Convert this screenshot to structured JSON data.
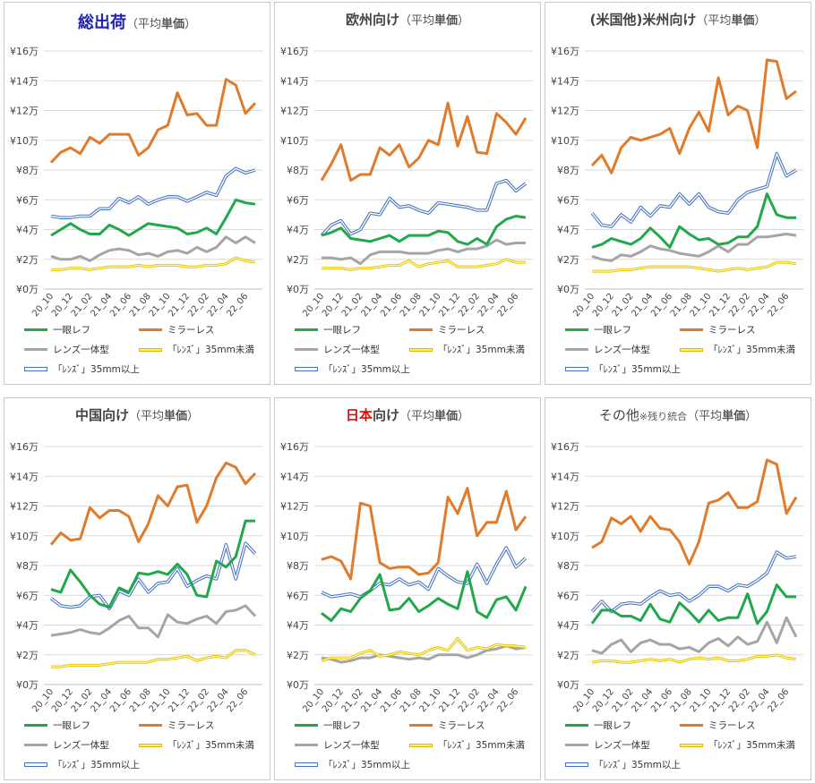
{
  "legend": {
    "slr": "一眼レフ",
    "mirrorless": "ミラーレス",
    "compact": "レンズ一体型",
    "lens_small": "「ﾚﾝｽﾞ」35mm未満",
    "lens_large": "「ﾚﾝｽﾞ」35mm以上"
  },
  "colors": {
    "slr": "#21a84a",
    "mirrorless": "#e07b2c",
    "compact": "#a5a5a5",
    "lens_small": "#ffd700",
    "lens_large": "#4472c4",
    "grid": "#d9d9d9"
  },
  "panels": [
    {
      "title_main": "総出荷",
      "title_main_color": "#1f1fb0",
      "title_pre": "",
      "title_note": "",
      "title_paren_pre": "（平均",
      "title_paren_bold": "単価",
      "title_paren_post": "）"
    },
    {
      "title_main": "",
      "title_main_color": "#333333",
      "title_pre": "欧州向け",
      "title_note": "",
      "title_paren_pre": "（平均",
      "title_paren_bold": "単価",
      "title_paren_post": "）"
    },
    {
      "title_main": "",
      "title_main_color": "#333333",
      "title_pre": "(米国他)米州向け",
      "title_note": "",
      "title_paren_pre": "（平均",
      "title_paren_bold": "単価",
      "title_paren_post": "）"
    },
    {
      "title_main": "",
      "title_main_color": "#333333",
      "title_pre": "中国向け",
      "title_note": "",
      "title_paren_pre": "（平均",
      "title_paren_bold": "単価",
      "title_paren_post": "）"
    },
    {
      "title_main": "日本",
      "title_main_color": "#d01010",
      "title_pre": "向け",
      "title_note": "",
      "title_paren_pre": "（平均",
      "title_paren_bold": "単価",
      "title_paren_post": "）"
    },
    {
      "title_main": "",
      "title_main_color": "#333333",
      "title_pre": "その他",
      "title_note": "※残り統合",
      "title_paren_pre": "（平均",
      "title_paren_bold": "単価",
      "title_paren_post": "）"
    }
  ],
  "chart_data": {
    "type": "line",
    "x": [
      "20_10",
      "20_11",
      "20_12",
      "21_01",
      "21_02",
      "21_03",
      "21_04",
      "21_05",
      "21_06",
      "21_07",
      "21_08",
      "21_09",
      "21_10",
      "21_11",
      "21_12",
      "22_01",
      "22_02",
      "22_03",
      "22_04",
      "22_05",
      "22_06",
      "22_07"
    ],
    "x_tick_labels": [
      "20_10",
      "20_12",
      "21_02",
      "21_04",
      "21_06",
      "21_08",
      "21_10",
      "21_12",
      "22_02",
      "22_04",
      "22_06"
    ],
    "y_tick_labels": [
      "¥0万",
      "¥2万",
      "¥4万",
      "¥6万",
      "¥8万",
      "¥10万",
      "¥12万",
      "¥14万",
      "¥16万"
    ],
    "ylim": [
      0,
      16
    ],
    "yunit": "万円",
    "charts": [
      {
        "title": "総出荷（平均単価）",
        "series": [
          {
            "key": "slr",
            "values": [
              3.6,
              4.0,
              4.4,
              4.0,
              3.7,
              3.7,
              4.3,
              4.0,
              3.6,
              4.0,
              4.4,
              4.3,
              4.2,
              4.1,
              3.7,
              3.8,
              4.1,
              3.7,
              4.8,
              6.0,
              5.8,
              5.7
            ]
          },
          {
            "key": "mirrorless",
            "values": [
              8.5,
              9.2,
              9.5,
              9.1,
              10.2,
              9.8,
              10.4,
              10.4,
              10.4,
              9.0,
              9.5,
              10.7,
              11.0,
              13.2,
              11.7,
              11.8,
              11.0,
              11.0,
              14.1,
              13.7,
              11.8,
              12.5
            ]
          },
          {
            "key": "compact",
            "values": [
              2.2,
              2.0,
              2.0,
              2.2,
              1.9,
              2.3,
              2.6,
              2.7,
              2.6,
              2.3,
              2.4,
              2.2,
              2.5,
              2.6,
              2.4,
              2.8,
              2.5,
              2.8,
              3.5,
              3.1,
              3.5,
              3.1
            ]
          },
          {
            "key": "lens_small",
            "values": [
              1.3,
              1.3,
              1.4,
              1.4,
              1.3,
              1.4,
              1.5,
              1.5,
              1.5,
              1.6,
              1.5,
              1.6,
              1.6,
              1.6,
              1.5,
              1.5,
              1.6,
              1.6,
              1.7,
              2.1,
              1.9,
              1.8
            ]
          },
          {
            "key": "lens_large",
            "values": [
              4.9,
              4.8,
              4.8,
              4.9,
              4.9,
              5.4,
              5.4,
              6.1,
              5.8,
              6.2,
              5.7,
              6.0,
              6.2,
              6.2,
              5.9,
              6.2,
              6.5,
              6.3,
              7.6,
              8.1,
              7.8,
              8.0
            ]
          }
        ]
      },
      {
        "title": "欧州向け（平均単価）",
        "series": [
          {
            "key": "slr",
            "values": [
              3.6,
              3.8,
              4.1,
              3.4,
              3.3,
              3.2,
              3.4,
              3.6,
              3.2,
              3.6,
              3.6,
              3.6,
              3.9,
              3.8,
              3.2,
              3.0,
              3.4,
              3.0,
              4.2,
              4.7,
              4.9,
              4.8
            ]
          },
          {
            "key": "mirrorless",
            "values": [
              7.3,
              8.4,
              9.7,
              7.3,
              7.7,
              7.7,
              9.5,
              9.0,
              9.7,
              8.2,
              8.8,
              10.0,
              9.7,
              12.5,
              9.6,
              11.6,
              9.2,
              9.1,
              11.8,
              11.2,
              10.4,
              11.5
            ]
          },
          {
            "key": "compact",
            "values": [
              2.1,
              2.1,
              2.0,
              2.1,
              1.7,
              2.3,
              2.5,
              2.5,
              2.5,
              2.4,
              2.4,
              2.4,
              2.6,
              2.7,
              2.5,
              2.7,
              2.7,
              2.9,
              3.3,
              3.0,
              3.1,
              3.1
            ]
          },
          {
            "key": "lens_small",
            "values": [
              1.4,
              1.4,
              1.4,
              1.3,
              1.4,
              1.4,
              1.5,
              1.6,
              1.6,
              1.9,
              1.5,
              1.7,
              1.8,
              1.9,
              1.5,
              1.5,
              1.5,
              1.6,
              1.7,
              2.0,
              1.8,
              1.8
            ]
          },
          {
            "key": "lens_large",
            "values": [
              3.6,
              4.3,
              4.6,
              3.7,
              4.0,
              5.1,
              5.0,
              6.1,
              5.5,
              5.6,
              5.3,
              5.1,
              5.8,
              5.7,
              5.6,
              5.5,
              5.3,
              5.3,
              7.1,
              7.3,
              6.6,
              7.1
            ]
          }
        ]
      },
      {
        "title": "(米国他)米州向け（平均単価）",
        "series": [
          {
            "key": "slr",
            "values": [
              2.8,
              3.0,
              3.4,
              3.2,
              3.0,
              3.4,
              4.1,
              3.5,
              2.8,
              4.2,
              3.7,
              3.3,
              3.4,
              3.0,
              3.1,
              3.5,
              3.5,
              4.2,
              6.4,
              5.0,
              4.8,
              4.8
            ]
          },
          {
            "key": "mirrorless",
            "values": [
              8.3,
              9.0,
              7.8,
              9.5,
              10.2,
              10.0,
              10.2,
              10.4,
              10.8,
              9.1,
              10.8,
              11.9,
              10.6,
              14.2,
              11.7,
              12.3,
              12.0,
              9.5,
              15.4,
              15.3,
              12.8,
              13.3
            ]
          },
          {
            "key": "compact",
            "values": [
              2.2,
              2.0,
              1.9,
              2.3,
              2.2,
              2.5,
              2.9,
              2.7,
              2.6,
              2.4,
              2.3,
              2.2,
              2.5,
              2.9,
              2.5,
              3.0,
              3.0,
              3.5,
              3.5,
              3.6,
              3.7,
              3.6
            ]
          },
          {
            "key": "lens_small",
            "values": [
              1.2,
              1.2,
              1.2,
              1.3,
              1.3,
              1.4,
              1.5,
              1.5,
              1.5,
              1.5,
              1.5,
              1.4,
              1.3,
              1.2,
              1.3,
              1.4,
              1.3,
              1.4,
              1.5,
              1.8,
              1.8,
              1.7
            ]
          },
          {
            "key": "lens_large",
            "values": [
              5.1,
              4.3,
              4.2,
              5.0,
              4.5,
              5.5,
              4.9,
              5.6,
              5.5,
              6.4,
              5.7,
              6.4,
              5.5,
              5.2,
              5.1,
              6.0,
              6.5,
              6.7,
              6.9,
              9.1,
              7.6,
              8.0
            ]
          }
        ]
      },
      {
        "title": "中国向け（平均単価）",
        "series": [
          {
            "key": "slr",
            "values": [
              6.4,
              6.2,
              7.7,
              6.9,
              6.0,
              5.4,
              5.2,
              6.5,
              6.2,
              7.5,
              7.4,
              7.6,
              7.4,
              8.1,
              7.4,
              6.0,
              5.9,
              8.3,
              7.9,
              8.6,
              11.0,
              11.0
            ]
          },
          {
            "key": "mirrorless",
            "values": [
              9.4,
              10.2,
              9.7,
              9.8,
              11.9,
              11.2,
              11.7,
              11.7,
              11.3,
              9.6,
              10.8,
              12.7,
              12.0,
              13.3,
              13.4,
              10.9,
              12.0,
              13.9,
              14.9,
              14.6,
              13.5,
              14.2
            ]
          },
          {
            "key": "compact",
            "values": [
              3.3,
              3.4,
              3.5,
              3.7,
              3.5,
              3.4,
              3.8,
              4.3,
              4.6,
              3.8,
              3.8,
              3.2,
              4.7,
              4.2,
              4.1,
              4.4,
              4.6,
              4.1,
              4.9,
              5.0,
              5.3,
              4.6
            ]
          },
          {
            "key": "lens_small",
            "values": [
              1.2,
              1.2,
              1.3,
              1.3,
              1.3,
              1.3,
              1.4,
              1.5,
              1.5,
              1.5,
              1.5,
              1.7,
              1.7,
              1.8,
              1.9,
              1.6,
              1.8,
              1.9,
              1.8,
              2.3,
              2.3,
              2.0
            ]
          },
          {
            "key": "lens_large",
            "values": [
              5.8,
              5.3,
              5.2,
              5.3,
              5.9,
              6.0,
              5.1,
              6.3,
              6.0,
              7.1,
              6.2,
              6.8,
              6.9,
              7.8,
              6.6,
              7.0,
              7.3,
              7.1,
              9.4,
              7.1,
              9.5,
              8.8
            ]
          }
        ]
      },
      {
        "title": "日本向け（平均単価）",
        "series": [
          {
            "key": "slr",
            "values": [
              4.8,
              4.3,
              5.1,
              4.9,
              5.8,
              6.3,
              7.4,
              5.0,
              5.1,
              5.8,
              4.9,
              5.3,
              5.8,
              5.4,
              5.1,
              7.6,
              4.9,
              4.5,
              5.7,
              5.9,
              5.0,
              6.6
            ]
          },
          {
            "key": "mirrorless",
            "values": [
              8.4,
              8.6,
              8.3,
              7.1,
              12.2,
              12.0,
              8.2,
              7.8,
              7.9,
              7.9,
              7.4,
              7.5,
              8.2,
              12.6,
              11.5,
              13.2,
              10.0,
              10.9,
              10.9,
              13.0,
              10.4,
              11.3
            ]
          },
          {
            "key": "compact",
            "values": [
              1.8,
              1.7,
              1.5,
              1.6,
              1.8,
              1.8,
              2.0,
              1.9,
              1.8,
              1.7,
              1.8,
              1.7,
              2.0,
              2.0,
              2.0,
              1.8,
              2.0,
              2.3,
              2.4,
              2.6,
              2.4,
              2.5
            ]
          },
          {
            "key": "lens_small",
            "values": [
              1.6,
              1.8,
              1.8,
              1.8,
              2.1,
              2.3,
              1.9,
              2.0,
              2.2,
              2.1,
              2.0,
              2.3,
              2.5,
              2.3,
              3.1,
              2.3,
              2.5,
              2.4,
              2.7,
              2.6,
              2.6,
              2.5
            ]
          },
          {
            "key": "lens_large",
            "values": [
              6.2,
              5.9,
              6.0,
              6.1,
              5.9,
              6.3,
              6.8,
              6.7,
              7.1,
              6.7,
              6.9,
              6.4,
              7.8,
              7.3,
              6.9,
              6.8,
              8.1,
              6.8,
              8.1,
              9.2,
              7.9,
              8.5
            ]
          }
        ]
      },
      {
        "title": "その他※残り統合（平均単価）",
        "series": [
          {
            "key": "slr",
            "values": [
              4.1,
              5.0,
              5.0,
              4.6,
              4.6,
              4.3,
              5.4,
              4.4,
              4.2,
              5.5,
              4.9,
              4.2,
              5.0,
              4.3,
              4.5,
              4.5,
              6.1,
              4.1,
              4.9,
              6.7,
              5.9,
              5.9
            ]
          },
          {
            "key": "mirrorless",
            "values": [
              9.2,
              9.6,
              11.2,
              10.8,
              11.3,
              10.3,
              11.3,
              10.5,
              10.4,
              9.6,
              8.1,
              9.6,
              12.2,
              12.4,
              12.9,
              11.9,
              11.9,
              12.3,
              15.1,
              14.8,
              11.5,
              12.6
            ]
          },
          {
            "key": "compact",
            "values": [
              2.3,
              2.1,
              2.7,
              3.0,
              2.2,
              2.8,
              3.0,
              2.7,
              2.7,
              2.4,
              2.5,
              2.2,
              2.8,
              3.1,
              2.6,
              3.2,
              2.7,
              2.9,
              4.2,
              2.8,
              4.5,
              3.2
            ]
          },
          {
            "key": "lens_small",
            "values": [
              1.5,
              1.6,
              1.6,
              1.5,
              1.5,
              1.6,
              1.7,
              1.6,
              1.7,
              1.5,
              1.7,
              1.8,
              1.7,
              1.8,
              1.6,
              1.6,
              1.7,
              1.9,
              1.9,
              2.0,
              1.8,
              1.7
            ]
          },
          {
            "key": "lens_large",
            "values": [
              4.9,
              5.6,
              4.9,
              5.4,
              5.5,
              5.4,
              5.9,
              6.3,
              6.0,
              6.1,
              5.6,
              6.0,
              6.6,
              6.6,
              6.3,
              6.7,
              6.6,
              7.0,
              7.5,
              8.9,
              8.5,
              8.6
            ]
          }
        ]
      }
    ]
  }
}
